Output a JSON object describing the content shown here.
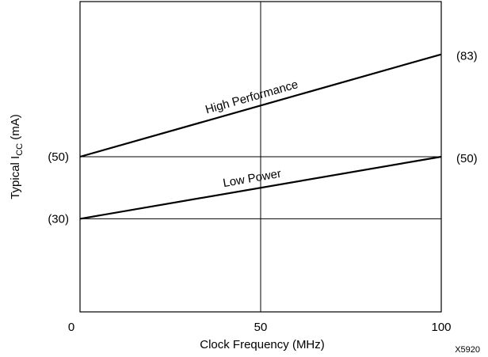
{
  "chart_data": {
    "type": "line",
    "x": [
      0,
      100
    ],
    "xlim": [
      0,
      100
    ],
    "ylim": [
      0,
      100
    ],
    "x_ticks": [
      0,
      50,
      100
    ],
    "x_tick_labels": [
      "0",
      "50",
      "100"
    ],
    "xlabel": "Clock Frequency (MHz)",
    "ylabel_prefix": "Typical I",
    "ylabel_subscript": "CC",
    "ylabel_suffix": " (mA)",
    "grid": true,
    "series": [
      {
        "name": "High Performance",
        "values": [
          50,
          83
        ],
        "start_label": "(50)",
        "end_label": "(83)"
      },
      {
        "name": "Low Power",
        "values": [
          30,
          50
        ],
        "start_label": "(30)",
        "end_label": "(50)"
      }
    ],
    "figure_id": "X5920"
  }
}
